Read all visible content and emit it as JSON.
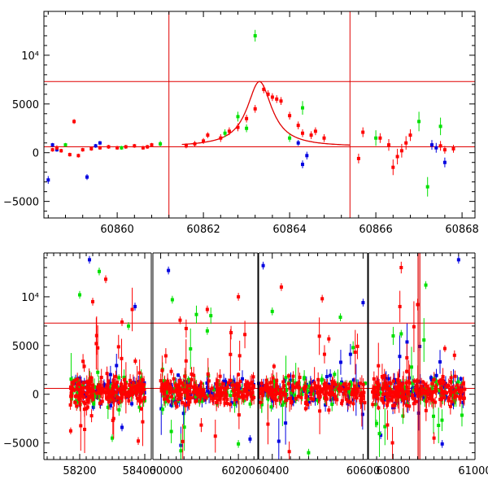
{
  "chart_data": [
    {
      "type": "scatter",
      "panel": "top",
      "title": "",
      "xlabel": "",
      "ylabel": "",
      "xlim": [
        60858.3,
        60868.3
      ],
      "ylim": [
        -6700,
        14500
      ],
      "x_ticks": [
        60860,
        60862,
        60864,
        60866,
        60868
      ],
      "y_ticks": [
        -5000,
        0,
        5000,
        10000
      ],
      "y_tick_labels": [
        "−5000",
        "0",
        "5000",
        "10⁴"
      ],
      "hlines": [
        600,
        7300
      ],
      "vlines": [
        60861.2,
        60865.4
      ],
      "colors": {
        "red": "#ff0000",
        "green": "#00e000",
        "blue": "#0000e0",
        "model": "#e00000"
      },
      "model_curve": {
        "baseline": 600,
        "peak": 7300,
        "t0": 60863.3,
        "tE": 0.35
      },
      "series": [
        {
          "name": "red",
          "points": [
            [
              60858.5,
              300,
              200
            ],
            [
              60858.6,
              500,
              250
            ],
            [
              60858.7,
              200,
              200
            ],
            [
              60858.9,
              -200,
              200
            ],
            [
              60859.0,
              3200,
              250
            ],
            [
              60859.1,
              -300,
              200
            ],
            [
              60859.2,
              300,
              200
            ],
            [
              60859.4,
              400,
              200
            ],
            [
              60859.6,
              500,
              200
            ],
            [
              60859.8,
              600,
              200
            ],
            [
              60860.0,
              500,
              200
            ],
            [
              60860.2,
              600,
              200
            ],
            [
              60860.4,
              700,
              200
            ],
            [
              60860.6,
              500,
              200
            ],
            [
              60860.7,
              600,
              200
            ],
            [
              60860.8,
              800,
              200
            ],
            [
              60861.6,
              700,
              250
            ],
            [
              60861.8,
              900,
              300
            ],
            [
              60862.0,
              1200,
              300
            ],
            [
              60862.1,
              1800,
              300
            ],
            [
              60862.4,
              1500,
              400
            ],
            [
              60862.6,
              2200,
              400
            ],
            [
              60862.8,
              2600,
              400
            ],
            [
              60863.0,
              3500,
              400
            ],
            [
              60863.2,
              4500,
              400
            ],
            [
              60863.4,
              6500,
              400
            ],
            [
              60863.5,
              6000,
              400
            ],
            [
              60863.6,
              5700,
              400
            ],
            [
              60863.7,
              5500,
              400
            ],
            [
              60863.8,
              5300,
              400
            ],
            [
              60864.0,
              3800,
              400
            ],
            [
              60864.2,
              2800,
              400
            ],
            [
              60864.3,
              2000,
              400
            ],
            [
              60864.5,
              1800,
              400
            ],
            [
              60864.6,
              2200,
              400
            ],
            [
              60864.8,
              1500,
              400
            ],
            [
              60865.6,
              -600,
              500
            ],
            [
              60865.7,
              2100,
              500
            ],
            [
              60866.1,
              1500,
              500
            ],
            [
              60866.3,
              800,
              600
            ],
            [
              60866.4,
              -1500,
              800
            ],
            [
              60866.5,
              -400,
              800
            ],
            [
              60866.6,
              200,
              700
            ],
            [
              60866.7,
              1000,
              700
            ],
            [
              60866.8,
              1800,
              600
            ],
            [
              60867.5,
              700,
              500
            ],
            [
              60867.6,
              300,
              400
            ],
            [
              60867.8,
              400,
              400
            ]
          ]
        },
        {
          "name": "green",
          "points": [
            [
              60858.8,
              800,
              200
            ],
            [
              60860.1,
              500,
              200
            ],
            [
              60861.0,
              900,
              300
            ],
            [
              60862.5,
              2000,
              400
            ],
            [
              60862.8,
              3700,
              500
            ],
            [
              60863.0,
              2500,
              400
            ],
            [
              60863.2,
              12000,
              600
            ],
            [
              60864.0,
              1500,
              400
            ],
            [
              60864.3,
              4600,
              700
            ],
            [
              60866.0,
              1500,
              800
            ],
            [
              60867.0,
              3200,
              1000
            ],
            [
              60867.2,
              -3500,
              1000
            ],
            [
              60867.5,
              2700,
              900
            ]
          ]
        },
        {
          "name": "blue",
          "points": [
            [
              60858.4,
              -2800,
              400
            ],
            [
              60858.5,
              800,
              200
            ],
            [
              60858.6,
              300,
              200
            ],
            [
              60859.3,
              -2500,
              300
            ],
            [
              60859.5,
              700,
              200
            ],
            [
              60859.6,
              1000,
              200
            ],
            [
              60864.2,
              1000,
              300
            ],
            [
              60864.3,
              -1200,
              400
            ],
            [
              60864.4,
              -300,
              400
            ],
            [
              60867.3,
              800,
              500
            ],
            [
              60867.4,
              500,
              500
            ],
            [
              60867.6,
              -1000,
              500
            ]
          ]
        }
      ]
    },
    {
      "type": "scatter",
      "panel": "bottom",
      "title": "",
      "xlabel": "",
      "ylabel": "",
      "x_segments": [
        [
          58090,
          58420
        ],
        [
          59980,
          60250
        ],
        [
          60370,
          60610
        ],
        [
          60740,
          61000
        ]
      ],
      "x_ticks": [
        58200,
        58400,
        60000,
        60200,
        60400,
        60600,
        60800,
        61000
      ],
      "ylim": [
        -6700,
        14500
      ],
      "y_ticks": [
        -5000,
        0,
        5000,
        10000
      ],
      "y_tick_labels": [
        "−5000",
        "0",
        "5000",
        "10⁴"
      ],
      "hlines": [
        600,
        7300
      ],
      "vlines": [
        60861.2,
        60865.4
      ],
      "observing_seasons": [
        [
          58170,
          58400
        ],
        [
          60000,
          60240
        ],
        [
          60365,
          60605
        ],
        [
          60750,
          60975
        ]
      ],
      "colors": {
        "red": "#ff0000",
        "green": "#00e000",
        "blue": "#0000e0"
      },
      "series": [
        {
          "name": "red",
          "density_per_season": 200,
          "points": [
            [
              58240,
              9500,
              400
            ],
            [
              58280,
              11800,
              400
            ],
            [
              58330,
              7400,
              400
            ],
            [
              58380,
              -4800,
              400
            ],
            [
              60050,
              7600,
              400
            ],
            [
              60120,
              8700,
              400
            ],
            [
              60200,
              10000,
              400
            ],
            [
              60420,
              11000,
              400
            ],
            [
              60510,
              9800,
              400
            ],
            [
              60820,
              13000,
              600
            ],
            [
              60860,
              9200,
              600
            ],
            [
              60900,
              -4500,
              600
            ],
            [
              60950,
              4000,
              500
            ]
          ]
        },
        {
          "name": "green",
          "density_per_season": 70,
          "points": [
            [
              58200,
              10200,
              400
            ],
            [
              58260,
              12600,
              400
            ],
            [
              58300,
              -4500,
              400
            ],
            [
              58350,
              7000,
              400
            ],
            [
              60030,
              9700,
              400
            ],
            [
              60120,
              6500,
              400
            ],
            [
              60200,
              -5100,
              400
            ],
            [
              60400,
              8500,
              400
            ],
            [
              60480,
              -6000,
              400
            ],
            [
              60550,
              7900,
              400
            ],
            [
              60760,
              -3000,
              400
            ],
            [
              60820,
              6200,
              400
            ],
            [
              60880,
              11200,
              400
            ]
          ]
        },
        {
          "name": "blue",
          "density_per_season": 70,
          "points": [
            [
              58230,
              13800,
              400
            ],
            [
              58370,
              9000,
              400
            ],
            [
              58330,
              -3400,
              400
            ],
            [
              60020,
              12700,
              400
            ],
            [
              60230,
              -4600,
              400
            ],
            [
              60380,
              13200,
              400
            ],
            [
              60600,
              9400,
              400
            ],
            [
              60770,
              -4200,
              400
            ],
            [
              60920,
              -5100,
              400
            ],
            [
              60960,
              13800,
              400
            ]
          ]
        }
      ]
    }
  ]
}
